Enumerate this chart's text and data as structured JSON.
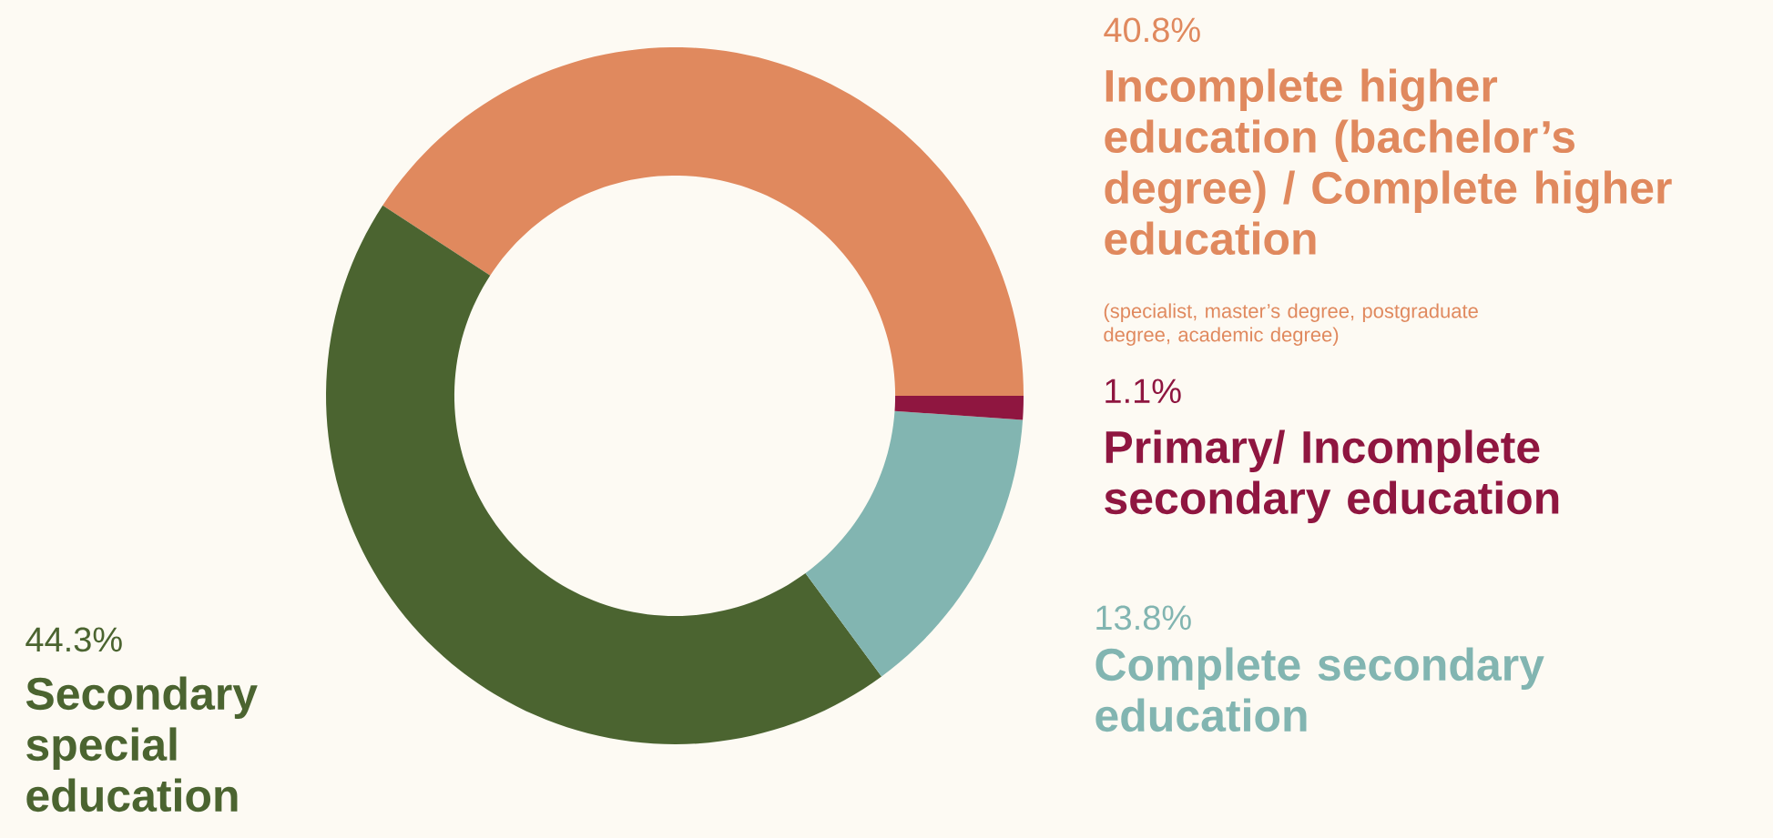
{
  "chart_data": {
    "type": "donut",
    "categories": [
      "Incomplete higher education (bachelor’s degree) / Complete higher education",
      "Secondary special education",
      "Complete secondary education",
      "Primary/ Incomplete secondary education"
    ],
    "values": [
      40.8,
      44.3,
      13.8,
      1.1
    ],
    "colors": [
      "#e0895e",
      "#4b6430",
      "#82b5b1",
      "#8f1640"
    ],
    "value_labels": [
      "40.8%",
      "44.3%",
      "13.8%",
      "1.1%"
    ],
    "annotations": [
      "(specialist, master’s degree, postgraduate degree, academic degree)"
    ]
  }
}
